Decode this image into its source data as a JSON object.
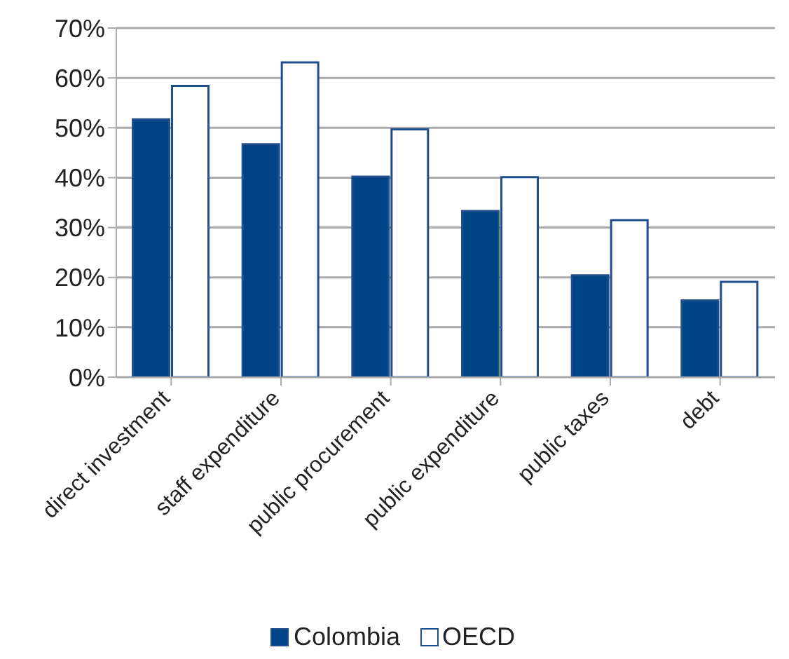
{
  "chart_data": {
    "type": "bar",
    "categories": [
      "direct investment",
      "staff expenditure",
      "public procurement",
      "public expenditure",
      "public taxes",
      "debt"
    ],
    "series": [
      {
        "name": "Colombia",
        "color": "#004488",
        "values": [
          51.7,
          46.7,
          40.2,
          33.3,
          20.4,
          15.4
        ]
      },
      {
        "name": "OECD",
        "color": "#ffffff",
        "values": [
          58.4,
          63.1,
          49.7,
          40.1,
          31.5,
          19.1
        ]
      }
    ],
    "ylim": [
      0,
      70
    ],
    "yticks": [
      {
        "value": 0,
        "label": "0%"
      },
      {
        "value": 10,
        "label": "10%"
      },
      {
        "value": 20,
        "label": "20%"
      },
      {
        "value": 30,
        "label": "30%"
      },
      {
        "value": 40,
        "label": "40%"
      },
      {
        "value": 50,
        "label": "50%"
      },
      {
        "value": 60,
        "label": "60%"
      },
      {
        "value": 70,
        "label": "70%"
      }
    ],
    "grid": "y",
    "legend": "bottom"
  }
}
